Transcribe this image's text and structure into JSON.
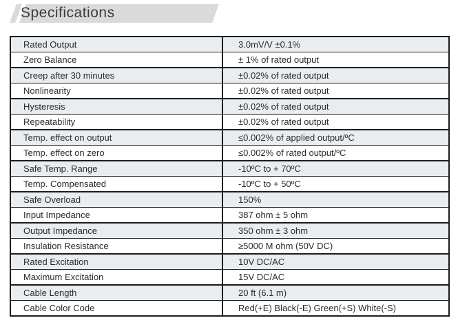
{
  "banner": {
    "title": "Specifications"
  },
  "colors": {
    "banner_fill": "#d8dadb",
    "row_shade": "#e9edf0",
    "border": "#1c1c1c",
    "text": "#2b2b30"
  },
  "table": {
    "rows": [
      {
        "label": "Rated Output",
        "value": "3.0mV/V ±0.1%",
        "shaded": true
      },
      {
        "label": "Zero Balance",
        "value": "± 1% of rated output",
        "shaded": false
      },
      {
        "label": "Creep after 30 minutes",
        "value": "±0.02% of rated output",
        "shaded": true
      },
      {
        "label": "Nonlinearity",
        "value": "±0.02% of rated output",
        "shaded": false
      },
      {
        "label": "Hysteresis",
        "value": "±0.02% of rated output",
        "shaded": true
      },
      {
        "label": "Repeatability",
        "value": "±0.02% of rated output",
        "shaded": false
      },
      {
        "label": "Temp. effect on output",
        "value": "≤0.002% of applied output/ºC",
        "shaded": true
      },
      {
        "label": "Temp. effect on zero",
        "value": "≤0.002% of rated output/ºC",
        "shaded": false
      },
      {
        "label": "Safe Temp. Range",
        "value": "-10ºC to + 70ºC",
        "shaded": true
      },
      {
        "label": "Temp. Compensated",
        "value": "-10ºC to + 50ºC",
        "shaded": false
      },
      {
        "label": "Safe Overload",
        "value": "150%",
        "shaded": true
      },
      {
        "label": "Input Impedance",
        "value": "387 ohm ± 5 ohm",
        "shaded": false
      },
      {
        "label": "Output Impedance",
        "value": "350 ohm ± 3 ohm",
        "shaded": true
      },
      {
        "label": "Insulation Resistance",
        "value": "≥5000 M ohm  (50V DC)",
        "shaded": false
      },
      {
        "label": "Rated Excitation",
        "value": "10V DC/AC",
        "shaded": true
      },
      {
        "label": "Maximum Excitation",
        "value": "15V DC/AC",
        "shaded": false
      },
      {
        "label": "Cable Length",
        "value": "20 ft (6.1 m)",
        "shaded": true
      },
      {
        "label": "Cable Color Code",
        "value": "Red(+E) Black(-E) Green(+S) White(-S)",
        "shaded": false
      }
    ]
  }
}
